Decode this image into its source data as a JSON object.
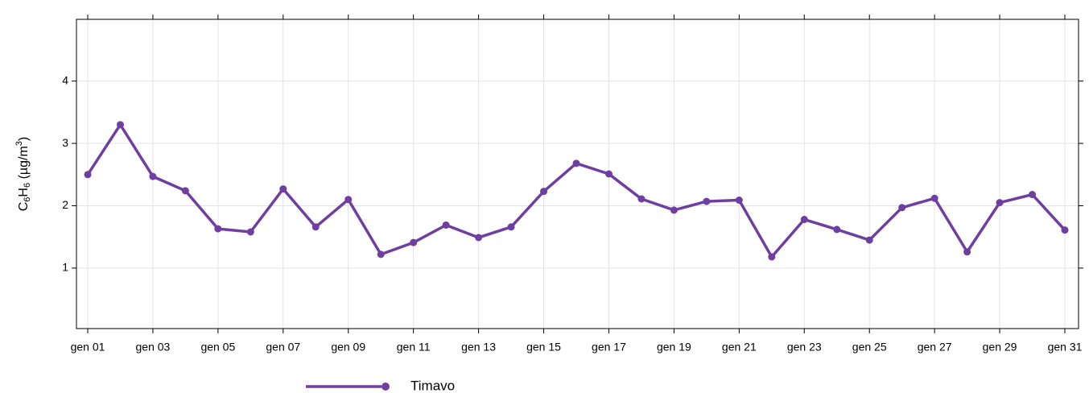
{
  "chart_data": {
    "type": "line",
    "y_label": [
      "C",
      "6",
      "H",
      "6",
      " (µg/m",
      "3",
      ")"
    ],
    "categories": [
      "gen 01",
      null,
      "gen 03",
      null,
      "gen 05",
      null,
      "gen 07",
      null,
      "gen 09",
      null,
      "gen 11",
      null,
      "gen 13",
      null,
      "gen 15",
      null,
      "gen 17",
      null,
      "gen 19",
      null,
      "gen 21",
      null,
      "gen 23",
      null,
      "gen 25",
      null,
      "gen 27",
      null,
      "gen 29",
      null,
      "gen 31"
    ],
    "series": [
      {
        "name": "Timavo",
        "color": "#6e3fa0",
        "values": [
          2.5,
          3.3,
          2.47,
          2.24,
          1.63,
          1.58,
          2.27,
          1.66,
          2.1,
          1.22,
          1.41,
          1.69,
          1.49,
          1.66,
          2.23,
          2.68,
          2.51,
          2.11,
          1.93,
          2.07,
          2.09,
          1.18,
          1.78,
          1.62,
          1.45,
          1.97,
          2.12,
          1.26,
          2.05,
          2.18,
          1.61
        ]
      }
    ],
    "ylim": [
      0.03,
      4.99
    ],
    "yticks": [
      1,
      2,
      3,
      4
    ],
    "grid": true
  }
}
